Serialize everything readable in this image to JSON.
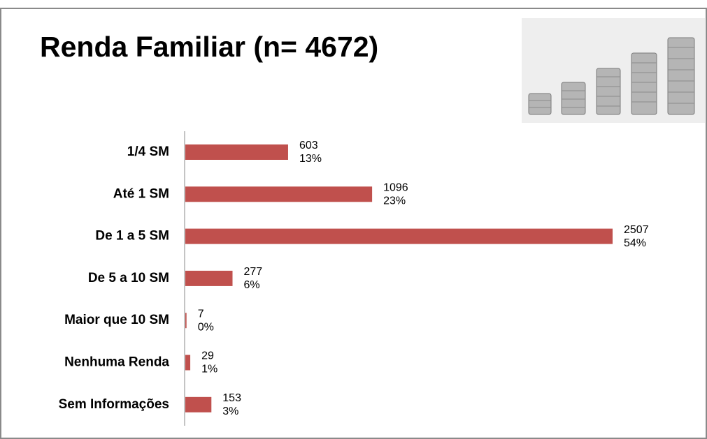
{
  "chart_data": {
    "type": "bar",
    "orientation": "horizontal",
    "title": "Renda Familiar (n= 4672)",
    "categories": [
      "1/4 SM",
      "Até 1 SM",
      "De 1 a 5 SM",
      "De 5 a 10 SM",
      "Maior que 10 SM",
      "Nenhuma Renda",
      "Sem Informações"
    ],
    "values": [
      603,
      1096,
      2507,
      277,
      7,
      29,
      153
    ],
    "percent_labels": [
      "13%",
      "23%",
      "54%",
      "6%",
      "0%",
      "1%",
      "3%"
    ],
    "color": "#c0504d"
  }
}
